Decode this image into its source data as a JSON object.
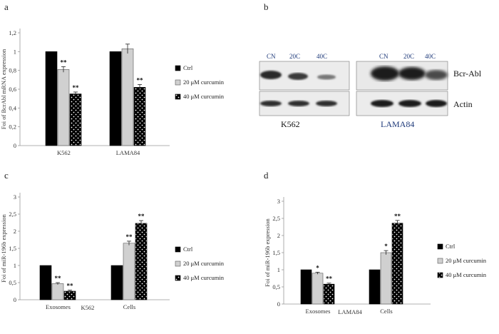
{
  "colors": {
    "ctrl": "#000000",
    "c20": "#d0d0d0",
    "c40": "#000000",
    "dots": "#ffffff",
    "blot_blue": "#1f3a7a"
  },
  "chart_data": [
    {
      "panel": "a",
      "type": "bar",
      "ylabel": "Foi of BcrAbl mRNA expression",
      "xlabel": "",
      "ylim": [
        0,
        1.2
      ],
      "yticks": [
        "0",
        "0,2",
        "0,4",
        "0,6",
        "0,8",
        "1",
        "1,2"
      ],
      "categories": [
        "K562",
        "LAMA84"
      ],
      "series": [
        {
          "name": "Ctrl",
          "values": [
            1.0,
            1.0
          ],
          "err": [
            0,
            0
          ],
          "sig": [
            "",
            ""
          ]
        },
        {
          "name": "20 μM curcumin",
          "values": [
            0.81,
            1.03
          ],
          "err": [
            0.03,
            0.05
          ],
          "sig": [
            "**",
            ""
          ]
        },
        {
          "name": "40 μM curcumin",
          "values": [
            0.55,
            0.62
          ],
          "err": [
            0.02,
            0.03
          ],
          "sig": [
            "**",
            "**"
          ]
        }
      ],
      "legend": "right",
      "grid": false
    },
    {
      "panel": "c",
      "type": "bar",
      "ylabel": "Foi of miR-196b expression",
      "xlabel": "K562",
      "ylim": [
        0,
        3
      ],
      "yticks": [
        "0",
        "0,5",
        "1",
        "1,5",
        "2",
        "2,5",
        "3"
      ],
      "categories": [
        "Exosomes",
        "Cells"
      ],
      "series": [
        {
          "name": "Ctrl",
          "values": [
            1.0,
            1.0
          ],
          "err": [
            0,
            0
          ],
          "sig": [
            "",
            ""
          ]
        },
        {
          "name": "20 μM curcumin",
          "values": [
            0.47,
            1.65
          ],
          "err": [
            0.03,
            0.06
          ],
          "sig": [
            "**",
            "**"
          ]
        },
        {
          "name": "40 μM curcumin",
          "values": [
            0.25,
            2.23
          ],
          "err": [
            0.03,
            0.08
          ],
          "sig": [
            "**",
            "**"
          ]
        }
      ],
      "legend": "right",
      "grid": false
    },
    {
      "panel": "d",
      "type": "bar",
      "ylabel": "Foi of miR-196b expression",
      "xlabel": "LAMA84",
      "ylim": [
        0,
        3
      ],
      "yticks": [
        "0",
        "0,5",
        "1",
        "1,5",
        "2",
        "2,5",
        "3"
      ],
      "categories": [
        "Exosomes",
        "Cells"
      ],
      "series": [
        {
          "name": "Ctrl",
          "values": [
            1.0,
            1.0
          ],
          "err": [
            0,
            0
          ],
          "sig": [
            "",
            ""
          ]
        },
        {
          "name": "20 μM curcumin",
          "values": [
            0.9,
            1.5
          ],
          "err": [
            0.03,
            0.06
          ],
          "sig": [
            "*",
            "*"
          ]
        },
        {
          "name": "40 μM curcumin",
          "values": [
            0.58,
            2.36
          ],
          "err": [
            0.03,
            0.08
          ],
          "sig": [
            "**",
            "**"
          ]
        }
      ],
      "legend": "right",
      "grid": false
    }
  ],
  "panels": {
    "a": {
      "letter": "a"
    },
    "b": {
      "letter": "b",
      "lanes_left": [
        "CN",
        "20C",
        "40C"
      ],
      "lanes_right": [
        "CN",
        "20C",
        "40C"
      ],
      "rows": [
        "Bcr-Abl",
        "Actin"
      ],
      "cell_lines": [
        "K562",
        "LAMA84"
      ]
    },
    "c": {
      "letter": "c"
    },
    "d": {
      "letter": "d"
    }
  }
}
